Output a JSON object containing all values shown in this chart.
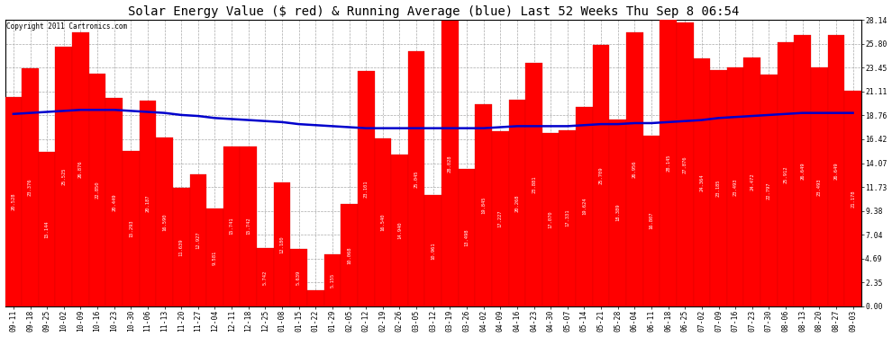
{
  "title": "Solar Energy Value ($ red) & Running Average (blue) Last 52 Weeks Thu Sep 8 06:54",
  "copyright": "Copyright 2011 Cartronics.com",
  "bar_color": "#ff0000",
  "line_color": "#0000cc",
  "background_color": "#ffffff",
  "grid_color": "#aaaaaa",
  "ylim": [
    0.0,
    28.14
  ],
  "yticks": [
    0.0,
    2.35,
    4.69,
    7.04,
    9.38,
    11.73,
    14.07,
    16.42,
    18.76,
    21.11,
    23.45,
    25.8,
    28.14
  ],
  "categories": [
    "09-11",
    "09-18",
    "09-25",
    "10-02",
    "10-09",
    "10-16",
    "10-23",
    "10-30",
    "11-06",
    "11-13",
    "11-20",
    "11-27",
    "12-04",
    "12-11",
    "12-18",
    "12-25",
    "01-08",
    "01-15",
    "01-22",
    "01-29",
    "02-05",
    "02-12",
    "02-19",
    "02-26",
    "03-05",
    "03-12",
    "03-19",
    "03-26",
    "04-02",
    "04-09",
    "04-16",
    "04-23",
    "04-30",
    "05-07",
    "05-14",
    "05-21",
    "05-28",
    "06-04",
    "06-11",
    "06-18",
    "06-25",
    "07-02",
    "07-09",
    "07-16",
    "07-23",
    "07-30",
    "08-06",
    "08-13",
    "08-20",
    "08-27",
    "09-03"
  ],
  "bar_values": [
    20.528,
    23.376,
    15.144,
    25.525,
    26.876,
    22.85,
    20.449,
    15.293,
    20.187,
    16.59,
    11.639,
    12.927,
    9.581,
    15.741,
    15.742,
    5.742,
    12.18,
    5.639,
    1.577,
    5.155,
    10.068,
    23.101,
    16.54,
    14.94,
    25.045,
    10.961,
    28.028,
    13.498,
    19.845,
    17.227,
    20.268,
    23.881,
    17.07,
    17.331,
    19.624,
    25.709,
    18.389,
    26.956,
    16.807,
    28.145,
    27.876,
    24.364,
    23.185,
    23.493,
    24.472,
    22.797,
    25.912,
    26.649,
    23.493,
    26.649,
    21.178
  ],
  "running_avg": [
    18.9,
    19.0,
    19.1,
    19.2,
    19.3,
    19.3,
    19.3,
    19.2,
    19.1,
    19.0,
    18.8,
    18.7,
    18.5,
    18.4,
    18.3,
    18.2,
    18.1,
    17.9,
    17.8,
    17.7,
    17.6,
    17.5,
    17.5,
    17.5,
    17.5,
    17.5,
    17.5,
    17.5,
    17.5,
    17.6,
    17.7,
    17.7,
    17.7,
    17.7,
    17.8,
    17.9,
    17.9,
    18.0,
    18.0,
    18.1,
    18.2,
    18.3,
    18.5,
    18.6,
    18.7,
    18.8,
    18.9,
    19.0,
    19.0,
    19.0,
    19.0
  ],
  "title_fontsize": 10,
  "tick_fontsize": 5.8,
  "label_fontsize": 4.0,
  "copyright_fontsize": 5.5
}
